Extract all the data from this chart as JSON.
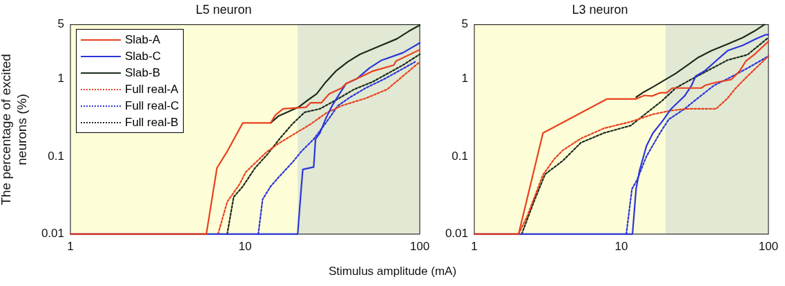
{
  "chart_data": [
    {
      "type": "line",
      "title": "L5 neuron",
      "xlabel": "Stimulus amplitude (mA)",
      "ylabel": "The percentage of excited neurons (%)",
      "log": "xy",
      "grid": false,
      "legend": "top left",
      "marker": "none",
      "xlim": [
        1,
        100
      ],
      "xticks": [
        1,
        10,
        100
      ],
      "ylim": [
        0.01,
        5
      ],
      "yticks": [
        0.01,
        0.1,
        1,
        5
      ],
      "bands": [
        {
          "axis": "x",
          "from": 1,
          "to": 20,
          "color": "#fdfdd8"
        },
        {
          "axis": "x",
          "from": 20,
          "to": 100,
          "color": "#e1e8d4"
        }
      ],
      "series": [
        {
          "name": "Slab-A",
          "color": "#e8401c",
          "line_style": "solid",
          "x": [
            1,
            6,
            6.9,
            7.9,
            9.7,
            14,
            14.9,
            16.5,
            22.3,
            23.7,
            27.3,
            30.3,
            35.7,
            37.9,
            45.5,
            53.5,
            71,
            73,
            100
          ],
          "values": [
            0.01,
            0.01,
            0.071,
            0.116,
            0.27,
            0.27,
            0.34,
            0.41,
            0.43,
            0.49,
            0.49,
            0.64,
            0.76,
            0.87,
            1.05,
            1.25,
            1.5,
            1.69,
            2.37
          ]
        },
        {
          "name": "Slab-C",
          "color": "#2a35d8",
          "line_style": "solid",
          "x": [
            1,
            20,
            21,
            21.4,
            24.7,
            25.3,
            26.8,
            29,
            31.5,
            34.7,
            37.9,
            43.6,
            51.4,
            60,
            80,
            100
          ],
          "values": [
            0.01,
            0.01,
            0.041,
            0.068,
            0.073,
            0.167,
            0.2,
            0.31,
            0.45,
            0.64,
            0.87,
            1.0,
            1.37,
            1.72,
            2.16,
            2.9
          ]
        },
        {
          "name": "Slab-B",
          "color": "#1a2a1a",
          "line_style": "solid",
          "x": [
            14,
            15.5,
            20.2,
            22.3,
            25.7,
            29,
            33,
            38.6,
            45.5,
            58,
            73.9,
            86.5,
            100
          ],
          "values": [
            0.27,
            0.33,
            0.43,
            0.51,
            0.64,
            0.91,
            1.25,
            1.65,
            2.07,
            2.6,
            3.27,
            4.1,
            4.9
          ]
        },
        {
          "name": "Full real-A",
          "color": "#e8401c",
          "line_style": "dotted",
          "x": [
            7,
            7.9,
            9.3,
            10.1,
            11.9,
            13.4,
            15.8,
            20.2,
            23.7,
            29,
            35.7,
            49,
            65,
            100
          ],
          "values": [
            0.01,
            0.026,
            0.044,
            0.063,
            0.09,
            0.116,
            0.15,
            0.21,
            0.26,
            0.36,
            0.45,
            0.56,
            0.73,
            1.65
          ]
        },
        {
          "name": "Full real-C",
          "color": "#2a35d8",
          "line_style": "dotted",
          "x": [
            11.9,
            12.6,
            14,
            15.8,
            18.6,
            21,
            24.7,
            29,
            34,
            40,
            49,
            63,
            94
          ],
          "values": [
            0.01,
            0.028,
            0.041,
            0.056,
            0.083,
            0.116,
            0.167,
            0.27,
            0.45,
            0.58,
            0.76,
            1.0,
            1.65
          ]
        },
        {
          "name": "Full real-B",
          "color": "#1a2a1a",
          "line_style": "dotted",
          "x": [
            7.9,
            8.6,
            9.7,
            11.4,
            13.4,
            15.8,
            18.6,
            21.9,
            26.8,
            33,
            42,
            53.5,
            80,
            100
          ],
          "values": [
            0.01,
            0.03,
            0.041,
            0.071,
            0.106,
            0.17,
            0.26,
            0.37,
            0.41,
            0.53,
            0.73,
            0.91,
            1.5,
            2.07
          ]
        }
      ]
    },
    {
      "type": "line",
      "title": "L3 neuron",
      "log": "xy",
      "grid": false,
      "legend": false,
      "marker": "none",
      "xlim": [
        1,
        100
      ],
      "xticks": [
        1,
        10,
        100
      ],
      "ylim": [
        0.01,
        5
      ],
      "yticks": [
        0.01,
        0.1,
        1,
        5
      ],
      "bands": [
        {
          "axis": "x",
          "from": 1,
          "to": 20,
          "color": "#fdfdd8"
        },
        {
          "axis": "x",
          "from": 20,
          "to": 100,
          "color": "#e1e8d4"
        }
      ],
      "series": [
        {
          "color": "#e8401c",
          "line_style": "solid",
          "x": [
            1,
            2,
            2.93,
            8,
            12.6,
            14.3,
            16.2,
            18.3,
            20.3,
            22.2,
            35,
            37,
            44,
            56,
            64,
            70,
            80,
            100
          ],
          "values": [
            0.01,
            0.01,
            0.2,
            0.55,
            0.55,
            0.61,
            0.6,
            0.66,
            0.66,
            0.76,
            0.76,
            0.82,
            0.9,
            0.98,
            1.27,
            1.68,
            2.04,
            3.04
          ]
        },
        {
          "color": "#2a35d8",
          "line_style": "solid",
          "x": [
            1,
            11.9,
            12.6,
            13.3,
            14.8,
            16.4,
            18.9,
            21.8,
            26.9,
            30,
            32,
            37,
            42.6,
            52.7,
            67,
            83,
            96,
            100
          ],
          "values": [
            0.01,
            0.01,
            0.0385,
            0.066,
            0.136,
            0.2,
            0.28,
            0.41,
            0.6,
            0.82,
            1.08,
            1.27,
            1.61,
            2.3,
            2.7,
            3.3,
            3.7,
            3.7
          ]
        },
        {
          "color": "#1a2a1a",
          "line_style": "solid",
          "x": [
            12.6,
            14.3,
            16.5,
            19.6,
            23.4,
            28,
            33.4,
            41,
            52.7,
            67,
            80,
            94
          ],
          "values": [
            0.58,
            0.68,
            0.79,
            0.96,
            1.17,
            1.49,
            1.89,
            2.3,
            2.8,
            3.4,
            4.1,
            5
          ]
        },
        {
          "color": "#e8401c",
          "line_style": "dotted",
          "x": [
            2,
            2.29,
            2.93,
            3.5,
            4,
            5.3,
            7.6,
            11.6,
            16.5,
            21.8,
            28,
            44,
            52.7,
            60,
            72,
            100
          ],
          "values": [
            0.01,
            0.017,
            0.058,
            0.093,
            0.12,
            0.17,
            0.23,
            0.28,
            0.35,
            0.39,
            0.41,
            0.41,
            0.56,
            0.76,
            1.08,
            1.96
          ]
        },
        {
          "color": "#2a35d8",
          "line_style": "dotted",
          "x": [
            10.8,
            11.8,
            12.8,
            14.8,
            18.3,
            21,
            26.9,
            33,
            42.6,
            52.7,
            72,
            100
          ],
          "values": [
            0.01,
            0.038,
            0.05,
            0.1,
            0.2,
            0.3,
            0.41,
            0.56,
            0.82,
            1.0,
            1.37,
            1.96
          ]
        },
        {
          "color": "#1a2a1a",
          "line_style": "dotted",
          "x": [
            2.1,
            2.54,
            3.03,
            4,
            5.3,
            7.6,
            11.6,
            15.3,
            18.9,
            23.4,
            28,
            40,
            52.7,
            72,
            100
          ],
          "values": [
            0.01,
            0.026,
            0.059,
            0.088,
            0.15,
            0.2,
            0.25,
            0.38,
            0.52,
            0.76,
            0.92,
            1.32,
            1.74,
            2.04,
            3.4
          ]
        }
      ]
    }
  ]
}
